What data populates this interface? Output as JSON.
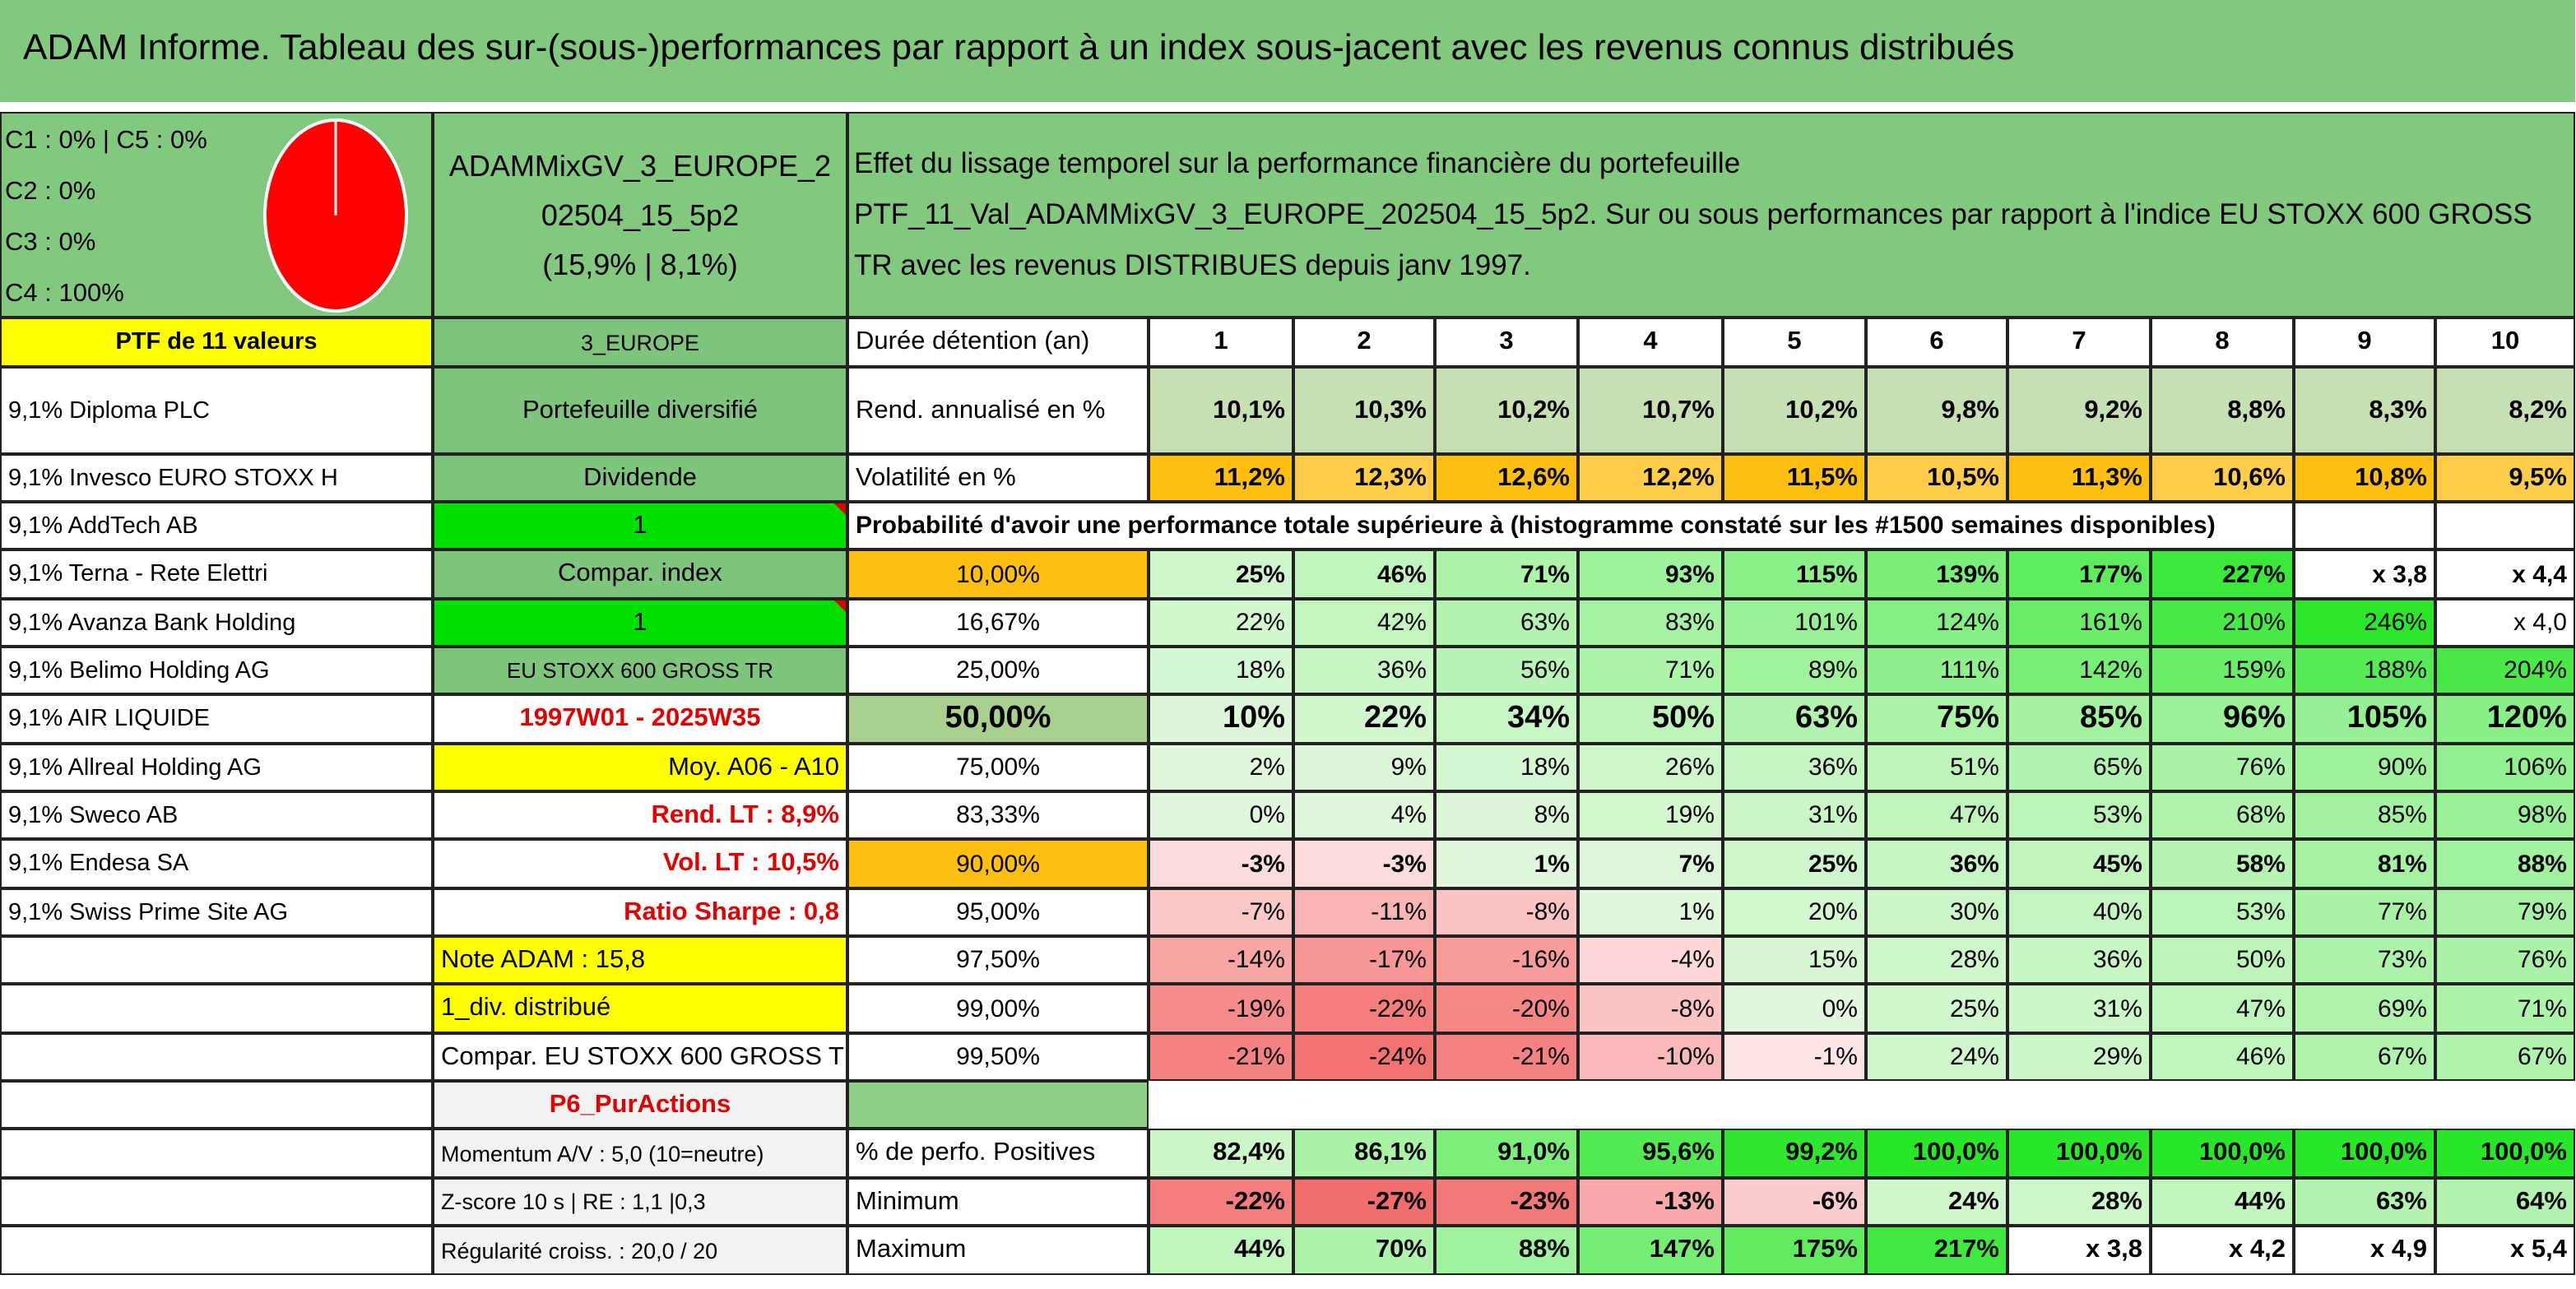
{
  "title": "ADAM Informe. Tableau des sur-(sous-)performances par rapport à un index sous-jacent avec les revenus connus distribués",
  "legend": [
    "C1 : 0% | C5 : 0%",
    "C2 : 0%",
    "C3 : 0%",
    "C4 : 100%"
  ],
  "portfolio": {
    "name": "ADAMMixGV_3_EUROPE_202504_15_5p2",
    "stats": "(15,9% | 8,1%)"
  },
  "description": [
    "Effet du lissage temporel sur la performance financière du portefeuille",
    "PTF_11_Val_ADAMMixGV_3_EUROPE_202504_15_5p2. Sur ou sous performances par rapport à l'indice EU STOXX 600 GROSS",
    "TR avec les revenus DISTRIBUES depuis janv 1997."
  ],
  "holdings": {
    "header": "PTF de 11 valeurs",
    "items": [
      "9,1% Diploma PLC",
      "9,1% Invesco EURO STOXX H",
      "9,1% AddTech AB",
      "9,1% Terna - Rete Elettri",
      "9,1% Avanza Bank Holding",
      "9,1% Belimo Holding AG",
      "9,1% AIR LIQUIDE",
      "9,1% Allreal Holding AG",
      "9,1% Sweco AB",
      "9,1% Endesa SA",
      "9,1% Swiss Prime Site AG"
    ]
  },
  "side_panel": [
    "3_EUROPE",
    "Portefeuille diversifié",
    "Dividende",
    "1",
    "Compar. index",
    "1",
    "EU STOXX 600 GROSS TR",
    "1997W01 - 2025W35",
    "Moy. A06 - A10",
    "Rend. LT : 8,9%",
    "Vol. LT : 10,5%",
    "Ratio Sharpe : 0,8",
    "Note ADAM : 15,8",
    "1_div. distribué",
    "Compar. EU STOXX 600 GROSS TR",
    "P6_PurActions",
    "Momentum A/V : 5,0 (10=neutre)",
    "Z-score 10 s | RE : 1,1 |0,3",
    "Régularité croiss. : 20,0 / 20"
  ],
  "table": {
    "header_label": "Durée détention (an)",
    "years": [
      1,
      2,
      3,
      4,
      5,
      6,
      7,
      8,
      9,
      10
    ],
    "summary_rows": [
      {
        "label": "Rend. annualisé en %",
        "cells": [
          "10,1%",
          "10,3%",
          "10,2%",
          "10,7%",
          "10,2%",
          "9,8%",
          "9,2%",
          "8,8%",
          "8,3%",
          "8,2%"
        ]
      },
      {
        "label": "Volatilité en %",
        "cells": [
          "11,2%",
          "12,3%",
          "12,6%",
          "12,2%",
          "11,5%",
          "10,5%",
          "11,3%",
          "10,6%",
          "10,8%",
          "9,5%"
        ]
      }
    ],
    "probability_title": "Probabilité d'avoir une performance totale supérieure à (histogramme constaté sur les #1500 semaines disponibles)",
    "percentile_rows": [
      {
        "label": "10,00%",
        "cells": [
          "25%",
          "46%",
          "71%",
          "93%",
          "115%",
          "139%",
          "177%",
          "227%",
          "x 3,8",
          "x 4,4"
        ]
      },
      {
        "label": "16,67%",
        "cells": [
          "22%",
          "42%",
          "63%",
          "83%",
          "101%",
          "124%",
          "161%",
          "210%",
          "246%",
          "x 4,0"
        ]
      },
      {
        "label": "25,00%",
        "cells": [
          "18%",
          "36%",
          "56%",
          "71%",
          "89%",
          "111%",
          "142%",
          "159%",
          "188%",
          "204%"
        ]
      },
      {
        "label": "50,00%",
        "cells": [
          "10%",
          "22%",
          "34%",
          "50%",
          "63%",
          "75%",
          "85%",
          "96%",
          "105%",
          "120%"
        ]
      },
      {
        "label": "75,00%",
        "cells": [
          "2%",
          "9%",
          "18%",
          "26%",
          "36%",
          "51%",
          "65%",
          "76%",
          "90%",
          "106%"
        ]
      },
      {
        "label": "83,33%",
        "cells": [
          "0%",
          "4%",
          "8%",
          "19%",
          "31%",
          "47%",
          "53%",
          "68%",
          "85%",
          "98%"
        ]
      },
      {
        "label": "90,00%",
        "cells": [
          "-3%",
          "-3%",
          "1%",
          "7%",
          "25%",
          "36%",
          "45%",
          "58%",
          "81%",
          "88%"
        ]
      },
      {
        "label": "95,00%",
        "cells": [
          "-7%",
          "-11%",
          "-8%",
          "1%",
          "20%",
          "30%",
          "40%",
          "53%",
          "77%",
          "79%"
        ]
      },
      {
        "label": "97,50%",
        "cells": [
          "-14%",
          "-17%",
          "-16%",
          "-4%",
          "15%",
          "28%",
          "36%",
          "50%",
          "73%",
          "76%"
        ]
      },
      {
        "label": "99,00%",
        "cells": [
          "-19%",
          "-22%",
          "-20%",
          "-8%",
          "0%",
          "25%",
          "31%",
          "47%",
          "69%",
          "71%"
        ]
      },
      {
        "label": "99,50%",
        "cells": [
          "-21%",
          "-24%",
          "-21%",
          "-10%",
          "-1%",
          "24%",
          "29%",
          "46%",
          "67%",
          "67%"
        ]
      }
    ],
    "stats_rows": [
      {
        "label": "% de perfo. Positives",
        "cells": [
          "82,4%",
          "86,1%",
          "91,0%",
          "95,6%",
          "99,2%",
          "100,0%",
          "100,0%",
          "100,0%",
          "100,0%",
          "100,0%"
        ]
      },
      {
        "label": "Minimum",
        "cells": [
          "-22%",
          "-27%",
          "-23%",
          "-13%",
          "-6%",
          "24%",
          "28%",
          "44%",
          "63%",
          "64%"
        ]
      },
      {
        "label": "Maximum",
        "cells": [
          "44%",
          "70%",
          "88%",
          "147%",
          "175%",
          "217%",
          "x 3,8",
          "x 4,2",
          "x 4,9",
          "x 5,4"
        ]
      }
    ]
  }
}
